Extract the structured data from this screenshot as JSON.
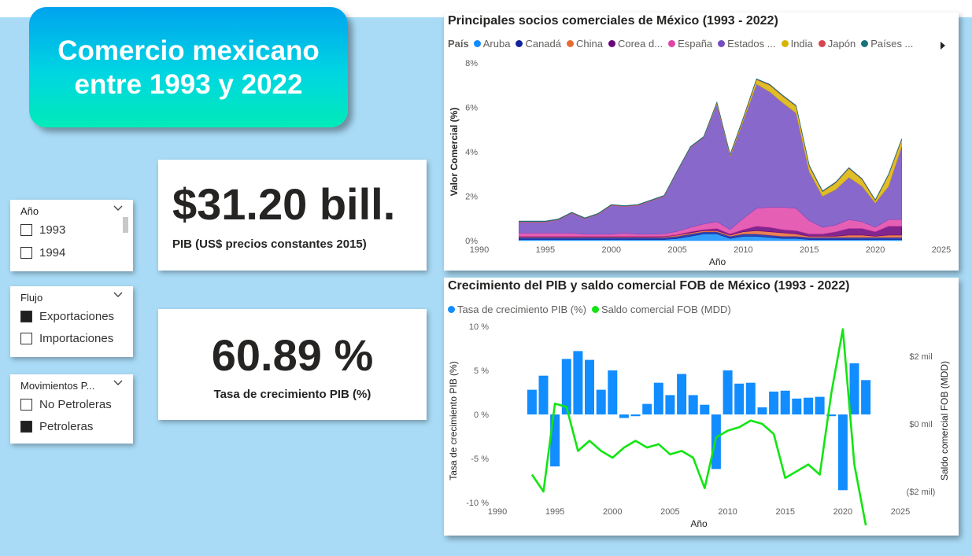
{
  "title": "Comercio mexicano\nentre 1993 y 2022",
  "kpis": {
    "pib_value": "$31.20 bill.",
    "pib_label": "PIB (US$ precios constantes 2015)",
    "growth_value": "60.89 %",
    "growth_label": "Tasa de crecimiento PIB (%)"
  },
  "slicers": {
    "anio": {
      "label": "Año",
      "items": [
        {
          "label": "1993",
          "checked": false
        },
        {
          "label": "1994",
          "checked": false
        }
      ]
    },
    "flujo": {
      "label": "Flujo",
      "items": [
        {
          "label": "Exportaciones",
          "checked": true
        },
        {
          "label": "Importaciones",
          "checked": false
        }
      ]
    },
    "movimientos": {
      "label": "Movimientos P...",
      "items": [
        {
          "label": "No Petroleras",
          "checked": false
        },
        {
          "label": "Petroleras",
          "checked": true
        }
      ]
    }
  },
  "chart1": {
    "title": "Principales socios comerciales de México (1993 - 2022)",
    "legend_title": "País",
    "legend": [
      {
        "name": "Aruba",
        "color": "#118dff"
      },
      {
        "name": "Canadá",
        "color": "#12239e"
      },
      {
        "name": "China",
        "color": "#e66c37"
      },
      {
        "name": "Corea d...",
        "color": "#6b007b"
      },
      {
        "name": "España",
        "color": "#e044a7"
      },
      {
        "name": "Estados ...",
        "color": "#744ec2"
      },
      {
        "name": "India",
        "color": "#d9b300"
      },
      {
        "name": "Japón",
        "color": "#d64550"
      },
      {
        "name": "Países ...",
        "color": "#197278"
      }
    ],
    "xlabel": "Año",
    "ylabel": "Valor Comercial (%)",
    "x_ticks": [
      "1990",
      "1995",
      "2000",
      "2005",
      "2010",
      "2015",
      "2020",
      "2025"
    ],
    "y_ticks": [
      "0%",
      "2%",
      "4%",
      "6%",
      "8%"
    ]
  },
  "chart2": {
    "title": "Crecimiento del PIB y saldo comercial FOB de México (1993 - 2022)",
    "legend": [
      {
        "name": "Tasa de crecimiento PIB (%)",
        "color": "#118dff"
      },
      {
        "name": "Saldo comercial FOB (MDD)",
        "color": "#12e512"
      }
    ],
    "xlabel": "Año",
    "ylabel_left": "Tasa de crecimiento PIB (%)",
    "ylabel_right": "Saldo comercial FOB (MDD)",
    "x_ticks": [
      "1990",
      "1995",
      "2000",
      "2005",
      "2010",
      "2015",
      "2020",
      "2025"
    ],
    "y_ticks_left": [
      "10 %",
      "5 %",
      "0 %",
      "-5 %",
      "-10 %"
    ],
    "y_ticks_right": [
      "$2 mil",
      "$0 mil",
      "($2 mil)"
    ]
  },
  "chart_data": [
    {
      "type": "area",
      "title": "Principales socios comerciales de México (1993 - 2022)",
      "xlabel": "Año",
      "ylabel": "Valor Comercial (%)",
      "xlim": [
        1990,
        2025
      ],
      "ylim": [
        0,
        8
      ],
      "x": [
        1993,
        1994,
        1995,
        1996,
        1997,
        1998,
        1999,
        2000,
        2001,
        2002,
        2003,
        2004,
        2005,
        2006,
        2007,
        2008,
        2009,
        2010,
        2011,
        2012,
        2013,
        2014,
        2015,
        2016,
        2017,
        2018,
        2019,
        2020,
        2021,
        2022
      ],
      "series": [
        {
          "name": "Aruba",
          "values": [
            0.05,
            0.05,
            0.05,
            0.05,
            0.05,
            0.05,
            0.05,
            0.05,
            0.05,
            0.05,
            0.05,
            0.05,
            0.1,
            0.2,
            0.3,
            0.3,
            0.1,
            0.2,
            0.2,
            0.15,
            0.1,
            0.1,
            0.05,
            0.05,
            0.05,
            0.05,
            0.05,
            0.05,
            0.05,
            0.05
          ]
        },
        {
          "name": "Canadá",
          "values": [
            0.1,
            0.1,
            0.1,
            0.1,
            0.1,
            0.1,
            0.1,
            0.1,
            0.1,
            0.1,
            0.1,
            0.1,
            0.1,
            0.1,
            0.1,
            0.1,
            0.1,
            0.1,
            0.1,
            0.1,
            0.1,
            0.1,
            0.1,
            0.1,
            0.1,
            0.1,
            0.1,
            0.1,
            0.1,
            0.1
          ]
        },
        {
          "name": "China",
          "values": [
            0.02,
            0.02,
            0.02,
            0.02,
            0.02,
            0.02,
            0.02,
            0.02,
            0.02,
            0.02,
            0.02,
            0.03,
            0.05,
            0.05,
            0.05,
            0.05,
            0.05,
            0.1,
            0.15,
            0.15,
            0.15,
            0.1,
            0.05,
            0.05,
            0.05,
            0.1,
            0.1,
            0.05,
            0.1,
            0.1
          ]
        },
        {
          "name": "Corea d...",
          "values": [
            0.02,
            0.02,
            0.02,
            0.02,
            0.02,
            0.02,
            0.02,
            0.02,
            0.02,
            0.02,
            0.02,
            0.02,
            0.02,
            0.05,
            0.05,
            0.1,
            0.05,
            0.1,
            0.2,
            0.2,
            0.15,
            0.15,
            0.1,
            0.1,
            0.2,
            0.3,
            0.3,
            0.2,
            0.4,
            0.4
          ]
        },
        {
          "name": "España",
          "values": [
            0.15,
            0.15,
            0.15,
            0.15,
            0.15,
            0.1,
            0.1,
            0.1,
            0.15,
            0.1,
            0.1,
            0.1,
            0.15,
            0.2,
            0.25,
            0.3,
            0.2,
            0.5,
            0.8,
            0.9,
            1.0,
            1.0,
            0.6,
            0.3,
            0.3,
            0.4,
            0.3,
            0.2,
            0.3,
            0.3
          ]
        },
        {
          "name": "Estados ...",
          "values": [
            0.5,
            0.5,
            0.5,
            0.6,
            0.9,
            0.7,
            0.9,
            1.3,
            1.2,
            1.3,
            1.5,
            1.7,
            2.7,
            3.6,
            3.9,
            5.3,
            3.3,
            4.4,
            5.6,
            5.2,
            4.7,
            4.3,
            2.2,
            1.4,
            1.6,
            1.9,
            1.6,
            1.1,
            1.5,
            3.3
          ]
        },
        {
          "name": "India",
          "values": [
            0,
            0,
            0,
            0,
            0,
            0,
            0,
            0,
            0,
            0,
            0,
            0,
            0,
            0,
            0,
            0.05,
            0.05,
            0.1,
            0.2,
            0.3,
            0.3,
            0.3,
            0.25,
            0.2,
            0.3,
            0.4,
            0.3,
            0.1,
            0.5,
            0.3
          ]
        },
        {
          "name": "Japón",
          "values": [
            0.02,
            0.02,
            0.02,
            0.02,
            0.02,
            0.02,
            0.02,
            0.02,
            0.02,
            0.02,
            0.02,
            0.02,
            0.02,
            0.02,
            0.02,
            0.02,
            0.02,
            0.02,
            0.02,
            0.02,
            0.02,
            0.02,
            0.02,
            0.02,
            0.02,
            0.02,
            0.02,
            0.02,
            0.02,
            0.02
          ]
        },
        {
          "name": "Países ...",
          "values": [
            0.02,
            0.02,
            0.02,
            0.02,
            0.02,
            0.02,
            0.02,
            0.02,
            0.02,
            0.02,
            0.02,
            0.02,
            0.02,
            0.02,
            0.02,
            0.02,
            0.02,
            0.02,
            0.02,
            0.02,
            0.02,
            0.02,
            0.02,
            0.02,
            0.02,
            0.02,
            0.02,
            0.02,
            0.02,
            0.02
          ]
        }
      ]
    },
    {
      "type": "bar",
      "title": "Crecimiento del PIB y saldo comercial FOB de México (1993 - 2022)",
      "xlabel": "Año",
      "ylabel": "Tasa de crecimiento PIB (%)",
      "y2label": "Saldo comercial FOB (MDD)",
      "xlim": [
        1990,
        2025
      ],
      "ylim": [
        -10,
        10
      ],
      "y2lim": [
        -3,
        3
      ],
      "x": [
        1993,
        1994,
        1995,
        1996,
        1997,
        1998,
        1999,
        2000,
        2001,
        2002,
        2003,
        2004,
        2005,
        2006,
        2007,
        2008,
        2009,
        2010,
        2011,
        2012,
        2013,
        2014,
        2015,
        2016,
        2017,
        2018,
        2019,
        2020,
        2021,
        2022
      ],
      "series": [
        {
          "name": "Tasa de crecimiento PIB (%)",
          "type": "bar",
          "values": [
            2.8,
            4.4,
            -5.9,
            6.3,
            7.2,
            6.2,
            2.8,
            5.0,
            -0.4,
            -0.2,
            1.2,
            3.6,
            2.2,
            4.6,
            2.2,
            1.1,
            -6.2,
            5.0,
            3.5,
            3.6,
            0.8,
            2.6,
            2.7,
            1.8,
            1.9,
            2.0,
            -0.2,
            -8.6,
            5.8,
            3.9
          ]
        },
        {
          "name": "Saldo comercial FOB (MDD)",
          "type": "line",
          "axis": "right",
          "values": [
            -1.5,
            -2.0,
            0.6,
            0.5,
            -0.8,
            -0.5,
            -0.8,
            -1.0,
            -0.7,
            -0.5,
            -0.7,
            -0.6,
            -0.9,
            -0.8,
            -1.0,
            -1.9,
            -0.4,
            -0.2,
            -0.1,
            0.1,
            0.0,
            -0.3,
            -1.6,
            -1.4,
            -1.2,
            -1.5,
            0.9,
            2.8,
            -1.2,
            -3.0
          ]
        }
      ]
    }
  ]
}
